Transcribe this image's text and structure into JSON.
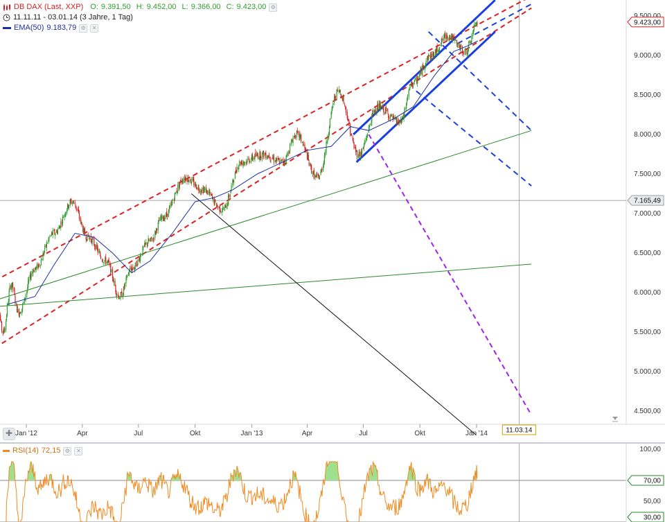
{
  "instrument": {
    "name": "DB DAX (Last, XXP)",
    "o_label": "O:",
    "o_value": "9.391,50",
    "h_label": "H:",
    "h_value": "9.452,00",
    "l_label": "L:",
    "l_value": "9.366,00",
    "c_label": "C:",
    "c_value": "9.423,00",
    "range": "11.11.11 - 03.01.14 (3 Jahre, 1 Tag)"
  },
  "ema": {
    "label": "EMA(50)",
    "value": "9.183,79"
  },
  "rsi": {
    "label": "RSI(14)",
    "value": "72,15"
  },
  "icons": {
    "logo": "candlestick-logo-icon",
    "clock": "clock-icon",
    "settings": "gear-icon",
    "close": "close-icon"
  },
  "colors": {
    "up": "#2e9e2e",
    "down": "#d42020",
    "ema": "#1c2fa0",
    "red_channel": "#e02020",
    "blue_channel": "#1a3fe0",
    "green_trend": "#2a8a2a",
    "violet": "#a020f0",
    "rsi": "#f08a20",
    "price_tag": "#e9ecef",
    "rsi_zone": "#9fdf90"
  },
  "price_tags": {
    "last": "9.423,00",
    "crosshair": "7.165,49"
  },
  "date_tag": "11.03.14",
  "rsi_tags": {
    "upper": "70,00",
    "lower": "30,00"
  },
  "chart_data": [
    {
      "type": "candlestick",
      "title": "DB DAX (Last, XXP)",
      "x_range": [
        "2011-11-11",
        "2014-01-03"
      ],
      "y_ticks": [
        {
          "value": 4500,
          "label": "4.500,00"
        },
        {
          "value": 5000,
          "label": "5.000,00"
        },
        {
          "value": 5500,
          "label": "5.500,00"
        },
        {
          "value": 6000,
          "label": "6.000,00"
        },
        {
          "value": 6500,
          "label": "6.500,00"
        },
        {
          "value": 7000,
          "label": "7.000,00"
        },
        {
          "value": 7500,
          "label": "7.500,00"
        },
        {
          "value": 8000,
          "label": "8.000,00"
        },
        {
          "value": 8500,
          "label": "8.500,00"
        },
        {
          "value": 9000,
          "label": "9.000,00"
        },
        {
          "value": 9500,
          "label": "9.500,00"
        }
      ],
      "x_ticks": [
        {
          "date": "2012-01-01",
          "label": "Jan '12"
        },
        {
          "date": "2012-04-01",
          "label": "Apr"
        },
        {
          "date": "2012-07-01",
          "label": "Jul"
        },
        {
          "date": "2012-10-01",
          "label": "Okt"
        },
        {
          "date": "2013-01-01",
          "label": "Jan '13"
        },
        {
          "date": "2013-04-01",
          "label": "Apr"
        },
        {
          "date": "2013-07-01",
          "label": "Jul"
        },
        {
          "date": "2013-10-01",
          "label": "Okt"
        },
        {
          "date": "2014-01-01",
          "label": "Jan '14"
        }
      ],
      "price_path": [
        {
          "date": "2011-11-11",
          "close": 6050
        },
        {
          "date": "2011-11-25",
          "close": 5500
        },
        {
          "date": "2011-12-08",
          "close": 6100
        },
        {
          "date": "2011-12-20",
          "close": 5750
        },
        {
          "date": "2012-01-15",
          "close": 6300
        },
        {
          "date": "2012-02-15",
          "close": 6750
        },
        {
          "date": "2012-03-16",
          "close": 7150
        },
        {
          "date": "2012-04-10",
          "close": 6700
        },
        {
          "date": "2012-05-10",
          "close": 6400
        },
        {
          "date": "2012-06-01",
          "close": 5950
        },
        {
          "date": "2012-06-20",
          "close": 6300
        },
        {
          "date": "2012-07-20",
          "close": 6650
        },
        {
          "date": "2012-08-10",
          "close": 6950
        },
        {
          "date": "2012-09-15",
          "close": 7450
        },
        {
          "date": "2012-10-15",
          "close": 7300
        },
        {
          "date": "2012-11-15",
          "close": 7050
        },
        {
          "date": "2012-12-15",
          "close": 7650
        },
        {
          "date": "2013-01-20",
          "close": 7750
        },
        {
          "date": "2013-02-20",
          "close": 7650
        },
        {
          "date": "2013-03-15",
          "close": 8000
        },
        {
          "date": "2013-04-18",
          "close": 7450
        },
        {
          "date": "2013-05-22",
          "close": 8550
        },
        {
          "date": "2013-06-24",
          "close": 7750
        },
        {
          "date": "2013-07-25",
          "close": 8350
        },
        {
          "date": "2013-08-30",
          "close": 8150
        },
        {
          "date": "2013-09-20",
          "close": 8650
        },
        {
          "date": "2013-10-20",
          "close": 9000
        },
        {
          "date": "2013-11-15",
          "close": 9250
        },
        {
          "date": "2013-12-15",
          "close": 9050
        },
        {
          "date": "2014-01-03",
          "close": 9423
        }
      ],
      "ema50_path": [
        {
          "date": "2011-12-01",
          "value": 5850
        },
        {
          "date": "2012-01-15",
          "value": 5950
        },
        {
          "date": "2012-02-15",
          "value": 6350
        },
        {
          "date": "2012-03-20",
          "value": 6750
        },
        {
          "date": "2012-04-20",
          "value": 6700
        },
        {
          "date": "2012-05-20",
          "value": 6500
        },
        {
          "date": "2012-06-20",
          "value": 6250
        },
        {
          "date": "2012-07-20",
          "value": 6400
        },
        {
          "date": "2012-08-25",
          "value": 6750
        },
        {
          "date": "2012-10-01",
          "value": 7150
        },
        {
          "date": "2012-11-01",
          "value": 7200
        },
        {
          "date": "2012-12-01",
          "value": 7300
        },
        {
          "date": "2013-01-10",
          "value": 7500
        },
        {
          "date": "2013-02-20",
          "value": 7650
        },
        {
          "date": "2013-04-01",
          "value": 7800
        },
        {
          "date": "2013-05-10",
          "value": 7850
        },
        {
          "date": "2013-06-10",
          "value": 8100
        },
        {
          "date": "2013-07-10",
          "value": 8050
        },
        {
          "date": "2013-08-20",
          "value": 8200
        },
        {
          "date": "2013-09-20",
          "value": 8350
        },
        {
          "date": "2013-10-25",
          "value": 8750
        },
        {
          "date": "2013-11-25",
          "value": 9050
        },
        {
          "date": "2013-12-20",
          "value": 9130
        },
        {
          "date": "2014-01-03",
          "value": 9184
        }
      ],
      "trendlines": [
        {
          "kind": "red-dashed",
          "from": {
            "date": "2011-11-11",
            "value": 6150
          },
          "to": {
            "date": "2014-03-31",
            "value": 9750
          }
        },
        {
          "kind": "red-dashed",
          "from": {
            "date": "2011-11-11",
            "value": 5300
          },
          "to": {
            "date": "2014-03-31",
            "value": 9600
          }
        },
        {
          "kind": "blue-solid",
          "from": {
            "date": "2013-06-15",
            "value": 8000
          },
          "to": {
            "date": "2014-01-31",
            "value": 9700
          }
        },
        {
          "kind": "blue-solid",
          "from": {
            "date": "2013-06-20",
            "value": 7650
          },
          "to": {
            "date": "2014-01-31",
            "value": 9300
          }
        },
        {
          "kind": "blue-dashed",
          "from": {
            "date": "2013-12-01",
            "value": 9150
          },
          "to": {
            "date": "2014-03-31",
            "value": 9650
          }
        },
        {
          "kind": "blue-dashed",
          "from": {
            "date": "2013-10-15",
            "value": 9300
          },
          "to": {
            "date": "2014-03-31",
            "value": 8050
          }
        },
        {
          "kind": "blue-dashed",
          "from": {
            "date": "2013-09-25",
            "value": 8550
          },
          "to": {
            "date": "2014-03-31",
            "value": 7350
          }
        },
        {
          "kind": "green-solid",
          "from": {
            "date": "2011-11-11",
            "value": 5900
          },
          "to": {
            "date": "2014-03-31",
            "value": 8050
          }
        },
        {
          "kind": "green-solid",
          "from": {
            "date": "2011-11-11",
            "value": 5820
          },
          "to": {
            "date": "2014-03-31",
            "value": 6360
          }
        },
        {
          "kind": "black-solid",
          "from": {
            "date": "2012-09-25",
            "value": 7250
          },
          "to": {
            "date": "2013-12-31",
            "value": 4200
          }
        },
        {
          "kind": "violet-dashed",
          "from": {
            "date": "2013-07-10",
            "value": 8000
          },
          "to": {
            "date": "2014-03-31",
            "value": 4450
          }
        }
      ],
      "crosshair": {
        "date": "2014-03-11",
        "value": 7165.49
      }
    },
    {
      "type": "line",
      "title": "RSI(14)",
      "last_value": 72.15,
      "y_ticks": [
        {
          "value": 100,
          "label": "100,00"
        },
        {
          "value": 70,
          "label": "70,00"
        },
        {
          "value": 50,
          "label": "50,00"
        },
        {
          "value": 30,
          "label": "30,00"
        }
      ],
      "levels": [
        70,
        30
      ],
      "x_range": [
        "2011-11-11",
        "2014-01-03"
      ]
    }
  ]
}
